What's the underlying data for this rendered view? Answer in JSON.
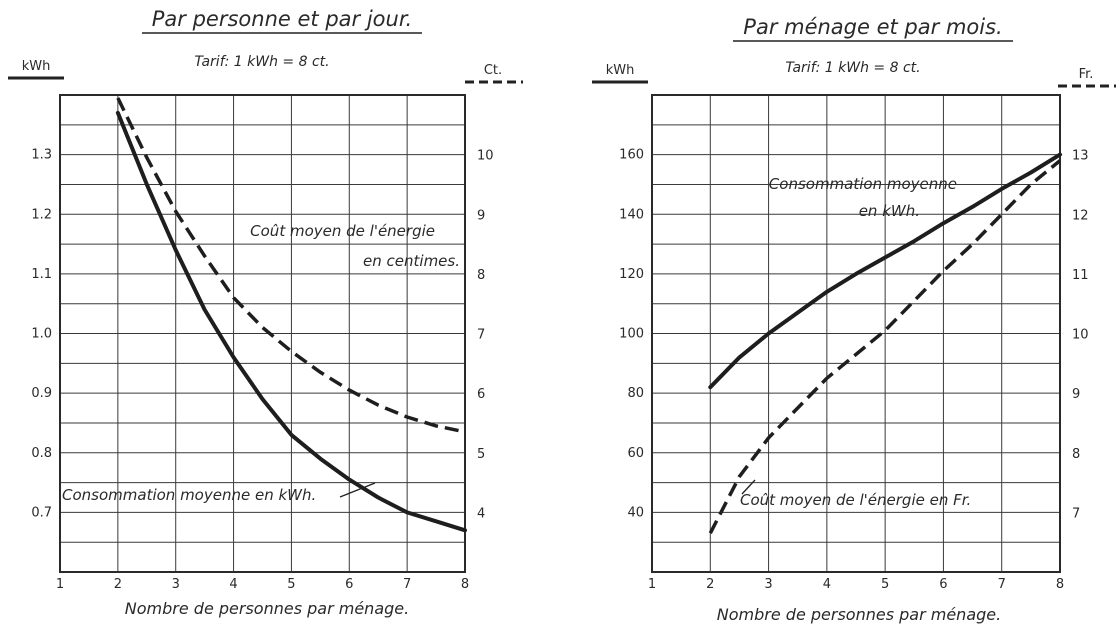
{
  "chart_data": [
    {
      "type": "line",
      "title": "Par personne et par jour.",
      "subtitle": "Tarif: 1 kWh = 8 ct.",
      "xlabel": "Nombre de personnes par ménage.",
      "ylabel": "kWh",
      "y2label": "Ct.",
      "xlim": [
        1,
        8
      ],
      "ylim": [
        0.6,
        1.4
      ],
      "y2lim": [
        3,
        11
      ],
      "xticks": [
        1,
        2,
        3,
        4,
        5,
        6,
        7,
        8
      ],
      "yticks": [
        0.7,
        0.8,
        0.9,
        1.0,
        1.1,
        1.2,
        1.3
      ],
      "ytick_labels": [
        "0.7",
        "0.8",
        "0.9",
        "1.0",
        "1.1",
        "1.2",
        "1.3"
      ],
      "y2ticks": [
        4,
        5,
        6,
        7,
        8,
        9,
        10
      ],
      "grid": true,
      "series": [
        {
          "name": "Consommation moyenne en kWh.",
          "axis": "left",
          "style": "solid",
          "x": [
            2,
            2.5,
            3,
            3.5,
            4,
            4.5,
            5,
            5.5,
            6,
            6.5,
            7,
            7.5,
            8
          ],
          "values": [
            1.37,
            1.25,
            1.14,
            1.04,
            0.96,
            0.89,
            0.83,
            0.79,
            0.755,
            0.725,
            0.7,
            0.685,
            0.67
          ]
        },
        {
          "name": "Coût moyen de l'énergie en centimes.",
          "axis": "right",
          "style": "dashed",
          "x": [
            2,
            2.5,
            3,
            3.5,
            4,
            4.5,
            5,
            5.5,
            6,
            6.5,
            7,
            7.5,
            8
          ],
          "values": [
            10.95,
            9.95,
            9.05,
            8.3,
            7.6,
            7.1,
            6.7,
            6.35,
            6.05,
            5.8,
            5.6,
            5.45,
            5.35
          ]
        }
      ]
    },
    {
      "type": "line",
      "title": "Par ménage et par mois.",
      "subtitle": "Tarif: 1 kWh = 8 ct.",
      "xlabel": "Nombre de personnes par ménage.",
      "ylabel": "kWh",
      "y2label": "Fr.",
      "xlim": [
        1,
        8
      ],
      "ylim": [
        20,
        180
      ],
      "y2lim": [
        6,
        14
      ],
      "xticks": [
        1,
        2,
        3,
        4,
        5,
        6,
        7,
        8
      ],
      "yticks": [
        40,
        60,
        80,
        100,
        120,
        140,
        160
      ],
      "y2ticks": [
        7,
        8,
        9,
        10,
        11,
        12,
        13
      ],
      "grid": true,
      "series": [
        {
          "name": "Consommation moyenne en kWh.",
          "axis": "left",
          "style": "solid",
          "x": [
            2,
            2.5,
            3,
            3.5,
            4,
            4.5,
            5,
            5.5,
            6,
            6.5,
            7,
            7.5,
            8
          ],
          "values": [
            82,
            92,
            100,
            107,
            114,
            120,
            125.5,
            131,
            137,
            142.5,
            148.5,
            154,
            160
          ]
        },
        {
          "name": "Coût moyen de l'énergie en Fr.",
          "axis": "right",
          "style": "dashed",
          "x": [
            2,
            2.5,
            3,
            3.5,
            4,
            4.5,
            5,
            5.5,
            6,
            6.5,
            7,
            7.5,
            8
          ],
          "values": [
            6.65,
            7.6,
            8.25,
            8.75,
            9.25,
            9.65,
            10.05,
            10.55,
            11.05,
            11.5,
            12.0,
            12.5,
            12.9
          ]
        }
      ]
    }
  ]
}
